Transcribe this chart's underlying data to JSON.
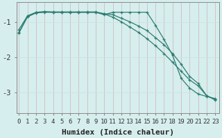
{
  "xlabel": "Humidex (Indice chaleur)",
  "ylabel": "",
  "bg_color": "#d6eeee",
  "grid_color": "#c8e4e4",
  "line_color": "#2e7d70",
  "x_ticks": [
    0,
    1,
    2,
    3,
    4,
    5,
    6,
    7,
    8,
    9,
    10,
    11,
    12,
    13,
    14,
    15,
    16,
    17,
    18,
    19,
    20,
    21,
    22,
    23
  ],
  "y_ticks": [
    -1,
    -2,
    -3
  ],
  "ylim": [
    -3.6,
    -0.45
  ],
  "xlim": [
    -0.3,
    23.5
  ],
  "line1_x": [
    0,
    1,
    2,
    3,
    4,
    5,
    6,
    7,
    8,
    9,
    10,
    11,
    12,
    13,
    14,
    15,
    16,
    17,
    18,
    19,
    20,
    21,
    22,
    23
  ],
  "line1_y": [
    -1.32,
    -0.86,
    -0.75,
    -0.73,
    -0.73,
    -0.73,
    -0.73,
    -0.73,
    -0.73,
    -0.73,
    -0.8,
    -0.73,
    -0.73,
    -0.73,
    -0.73,
    -0.73,
    -1.1,
    -1.5,
    -1.95,
    -2.6,
    -2.88,
    -3.05,
    -3.12,
    -3.18
  ],
  "line2_x": [
    0,
    1,
    2,
    3,
    4,
    5,
    6,
    7,
    8,
    9,
    10,
    11,
    12,
    13,
    14,
    15,
    16,
    17,
    18,
    19,
    20,
    21,
    22,
    23
  ],
  "line2_y": [
    -1.22,
    -0.83,
    -0.73,
    -0.71,
    -0.72,
    -0.72,
    -0.72,
    -0.72,
    -0.72,
    -0.72,
    -0.77,
    -0.8,
    -0.9,
    -1.0,
    -1.12,
    -1.25,
    -1.45,
    -1.65,
    -1.9,
    -2.2,
    -2.55,
    -2.75,
    -3.1,
    -3.22
  ],
  "line3_x": [
    0,
    1,
    2,
    3,
    4,
    5,
    6,
    7,
    8,
    9,
    10,
    11,
    12,
    13,
    14,
    15,
    16,
    17,
    18,
    19,
    20,
    21,
    22,
    23
  ],
  "line3_y": [
    -1.3,
    -0.85,
    -0.74,
    -0.72,
    -0.73,
    -0.73,
    -0.73,
    -0.73,
    -0.73,
    -0.73,
    -0.78,
    -0.87,
    -1.0,
    -1.15,
    -1.3,
    -1.48,
    -1.68,
    -1.9,
    -2.15,
    -2.4,
    -2.65,
    -2.82,
    -3.1,
    -3.2
  ],
  "marker": "+",
  "markersize": 3.5,
  "linewidth": 0.9,
  "tick_fontsize": 6.5,
  "xlabel_fontsize": 8
}
